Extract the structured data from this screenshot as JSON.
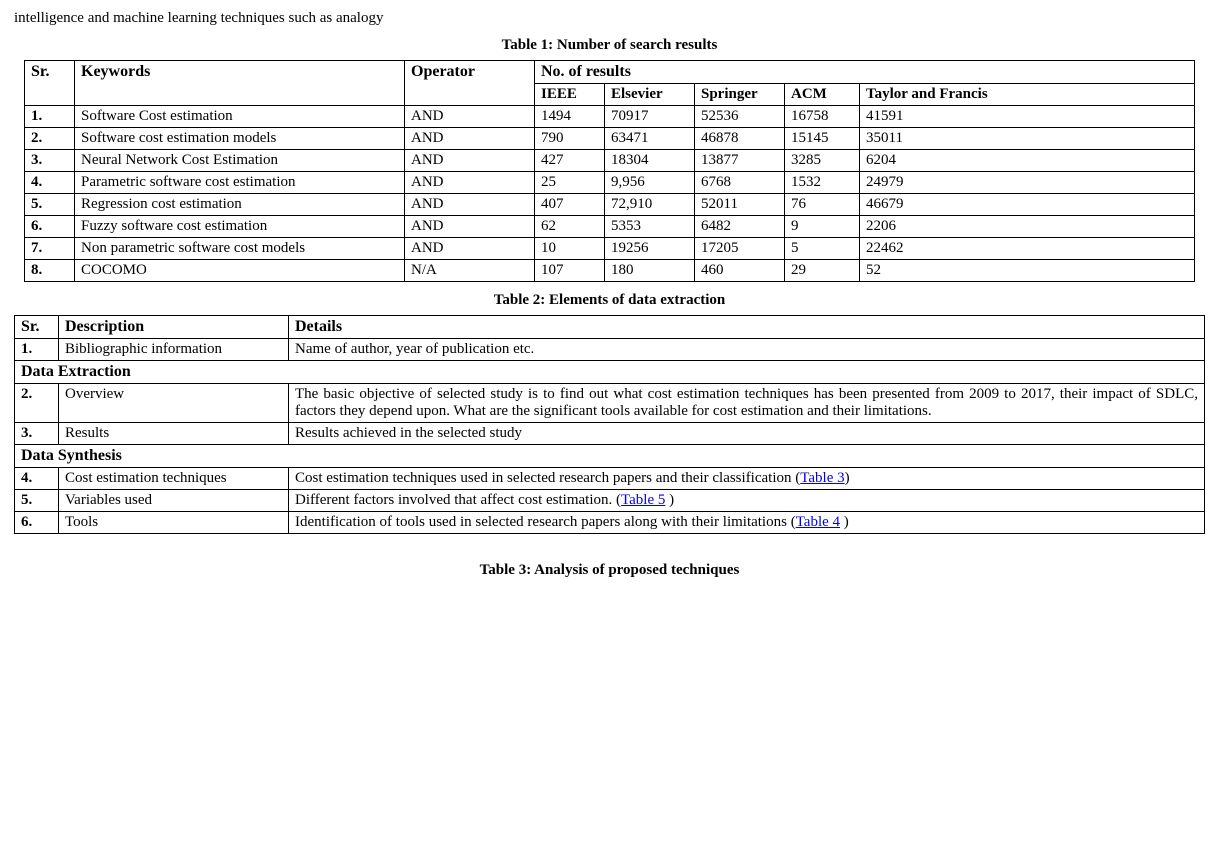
{
  "fragment_top": "intelligence and machine learning techniques such as analogy",
  "table1": {
    "caption": "Table 1: Number of search results",
    "headers": {
      "sr": "Sr.",
      "keywords": "Keywords",
      "operator": "Operator",
      "results": "No. of results",
      "sub": [
        "IEEE",
        "Elsevier",
        "Springer",
        "ACM",
        "Taylor and Francis"
      ]
    },
    "rows": [
      {
        "sr": "1.",
        "kw": "Software Cost estimation",
        "op": "AND",
        "v": [
          "1494",
          "70917",
          "52536",
          "16758",
          "41591"
        ]
      },
      {
        "sr": "2.",
        "kw": "Software cost estimation models",
        "op": "AND",
        "v": [
          "790",
          "63471",
          "46878",
          "15145",
          "35011"
        ]
      },
      {
        "sr": "3.",
        "kw": "Neural Network Cost Estimation",
        "op": "AND",
        "v": [
          "427",
          "18304",
          "13877",
          "3285",
          "6204"
        ]
      },
      {
        "sr": "4.",
        "kw": "Parametric software cost estimation",
        "op": "AND",
        "v": [
          "25",
          "9,956",
          "6768",
          "1532",
          "24979"
        ]
      },
      {
        "sr": "5.",
        "kw": "Regression cost estimation",
        "op": "AND",
        "v": [
          "407",
          "72,910",
          "52011",
          "76",
          "46679"
        ]
      },
      {
        "sr": "6.",
        "kw": "Fuzzy software cost estimation",
        "op": "AND",
        "v": [
          "62",
          "5353",
          "6482",
          "9",
          "2206"
        ]
      },
      {
        "sr": "7.",
        "kw": "Non parametric software cost models",
        "op": "AND",
        "v": [
          "10",
          "19256",
          "17205",
          "5",
          "22462"
        ]
      },
      {
        "sr": "8.",
        "kw": "COCOMO",
        "op": "N/A",
        "v": [
          "107",
          "180",
          "460",
          "29",
          "52"
        ]
      }
    ]
  },
  "table2": {
    "caption": "Table 2: Elements of data extraction",
    "headers": {
      "sr": "Sr.",
      "desc": "Description",
      "details": "Details"
    },
    "row1": {
      "sr": "1.",
      "desc": "Bibliographic information",
      "det": "Name of author, year of publication etc."
    },
    "section1": "Data Extraction",
    "row2": {
      "sr": "2.",
      "desc": "Overview",
      "det": "The basic objective of selected study is to find out what cost estimation techniques has been presented from 2009 to 2017, their impact of SDLC, factors they depend upon. What are the significant tools available for cost estimation and their limitations."
    },
    "row3": {
      "sr": "3.",
      "desc": "Results",
      "det": "Results achieved in the selected study"
    },
    "section2": "Data Synthesis",
    "row4": {
      "sr": "4.",
      "desc": "Cost estimation techniques",
      "det_pre": "Cost estimation techniques used in selected research papers and their classification (",
      "link": "Table 3",
      "det_post": ")"
    },
    "row5": {
      "sr": "5.",
      "desc": "Variables used",
      "det_pre": "Different factors involved that affect cost estimation. (",
      "link": "Table 5",
      "det_post": " )"
    },
    "row6": {
      "sr": "6.",
      "desc": "Tools",
      "det_pre": "Identification of tools used in selected research papers along with their limitations (",
      "link": "Table 4",
      "det_post": " )"
    }
  },
  "table3_caption": "Table 3: Analysis of proposed techniques"
}
